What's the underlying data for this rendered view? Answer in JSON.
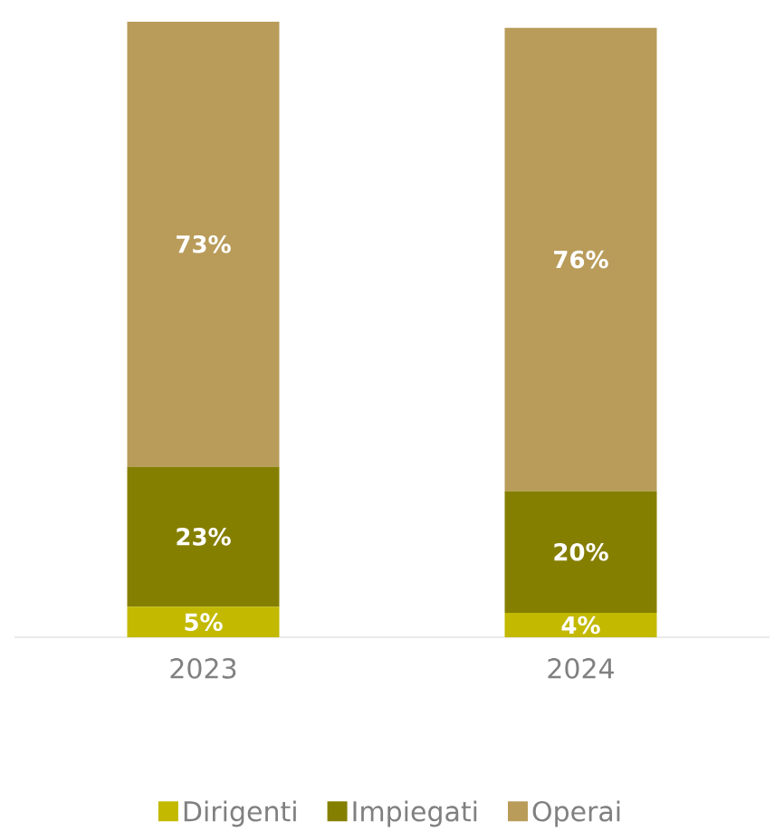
{
  "chart_data": {
    "type": "bar",
    "stacked": true,
    "categories": [
      "2023",
      "2024"
    ],
    "series": [
      {
        "name": "Dirigenti",
        "color": "#c2b900",
        "values": [
          5,
          4
        ],
        "value_labels": [
          "5%",
          "4%"
        ]
      },
      {
        "name": "Impiegati",
        "color": "#857f00",
        "values": [
          23,
          20
        ],
        "value_labels": [
          "23%",
          "20%"
        ]
      },
      {
        "name": "Operai",
        "color": "#b99c5a",
        "values": [
          73,
          76
        ],
        "value_labels": [
          "73%",
          "76%"
        ]
      }
    ],
    "legend": "bottom"
  }
}
